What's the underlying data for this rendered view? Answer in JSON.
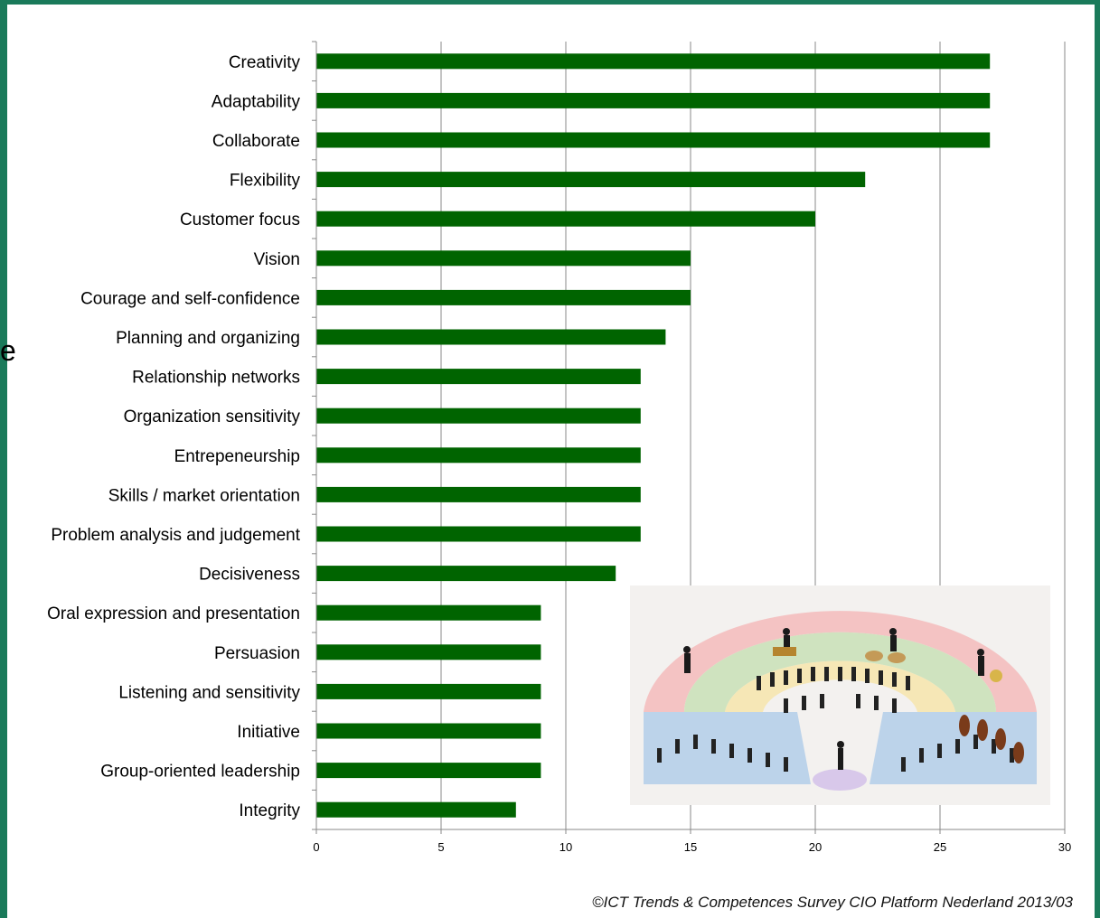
{
  "colors": {
    "frame": "#1a7a5a",
    "bar": "#006400",
    "grid": "#888888"
  },
  "stray_glyph": "e",
  "caption": "©ICT Trends & Competences Survey CIO Platform Nederland 2013/03",
  "inset_image": {
    "icon": "orchestra-illustration"
  },
  "chart_data": {
    "type": "bar",
    "orientation": "horizontal",
    "categories": [
      "Creativity",
      "Adaptability",
      "Collaborate",
      "Flexibility",
      "Customer focus",
      "Vision",
      "Courage and self-confidence",
      "Planning and organizing",
      "Relationship networks",
      "Organization sensitivity",
      "Entrepeneurship",
      "Skills / market orientation",
      "Problem analysis and judgement",
      "Decisiveness",
      "Oral expression and presentation",
      "Persuasion",
      "Listening and sensitivity",
      "Initiative",
      "Group-oriented leadership",
      "Integrity"
    ],
    "values": [
      27,
      27,
      27,
      22,
      20,
      15,
      15,
      14,
      13,
      13,
      13,
      13,
      13,
      12,
      9,
      9,
      9,
      9,
      9,
      8
    ],
    "xlim": [
      0,
      30
    ],
    "xticks": [
      "0",
      "5",
      "10",
      "15",
      "20",
      "25",
      "30"
    ],
    "grid": true,
    "legend": "none"
  }
}
